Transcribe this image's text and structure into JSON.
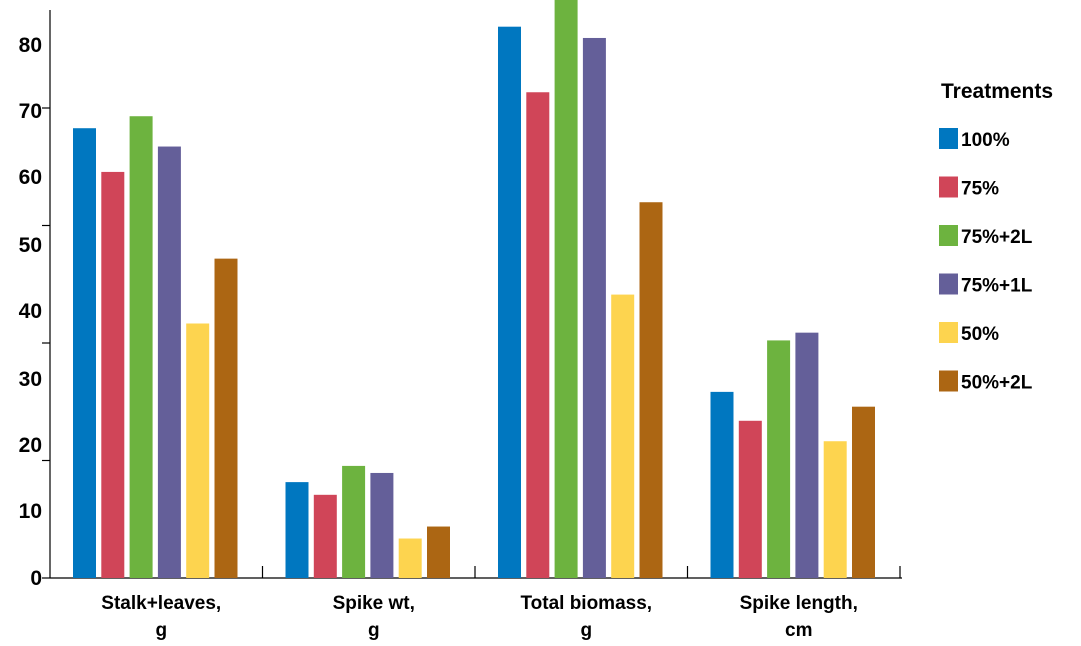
{
  "chart_data": {
    "type": "bar",
    "categories": [
      [
        "Stalk+leaves,",
        "g"
      ],
      [
        "Spike wt,",
        "g"
      ],
      [
        "Total biomass,",
        "g"
      ],
      [
        "Spike length,",
        "cm"
      ]
    ],
    "y_tick_labels": [
      "0",
      "10",
      "20",
      "30",
      "40",
      "50",
      "60",
      "70",
      "80"
    ],
    "ylim": [
      0,
      82
    ],
    "grid": false,
    "legend_title": "Treatments",
    "legend_position": "right",
    "series": [
      {
        "name": "100%",
        "color": "#0077C0",
        "values": [
          63.8,
          13.6,
          78.2,
          26.4
        ]
      },
      {
        "name": "75%",
        "color": "#D04558",
        "values": [
          57.6,
          11.8,
          68.9,
          22.3
        ]
      },
      {
        "name": "75%+2L",
        "color": "#6DB33F",
        "values": [
          65.5,
          15.9,
          82.1,
          33.7
        ]
      },
      {
        "name": "75%+1L",
        "color": "#645F99",
        "values": [
          61.2,
          14.9,
          76.6,
          34.8
        ]
      },
      {
        "name": "50%",
        "color": "#FDD44F",
        "values": [
          36.1,
          5.6,
          40.2,
          19.4
        ]
      },
      {
        "name": "50%+2L",
        "color": "#AC6613",
        "values": [
          45.3,
          7.3,
          53.3,
          24.3
        ]
      }
    ]
  }
}
